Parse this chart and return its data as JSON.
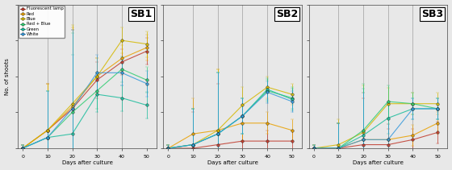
{
  "days": [
    0,
    10,
    20,
    30,
    40,
    50
  ],
  "SB1": {
    "Fluorescent lamp": [
      0.0,
      0.25,
      0.55,
      0.95,
      1.2,
      1.35
    ],
    "Red": [
      0.0,
      0.25,
      0.58,
      1.0,
      1.25,
      1.4
    ],
    "Blue": [
      0.0,
      0.25,
      0.62,
      1.0,
      1.5,
      1.45
    ],
    "Red + Blue": [
      0.0,
      0.15,
      0.5,
      0.8,
      1.1,
      0.95
    ],
    "Green": [
      0.0,
      0.15,
      0.2,
      0.75,
      0.7,
      0.6
    ],
    "White": [
      0.0,
      0.15,
      0.55,
      1.05,
      1.05,
      0.9
    ]
  },
  "SB1_err": {
    "Fluorescent lamp": [
      0.05,
      0.65,
      1.1,
      0.25,
      0.18,
      0.18
    ],
    "Red": [
      0.05,
      0.65,
      1.1,
      0.25,
      0.18,
      0.18
    ],
    "Blue": [
      0.05,
      0.65,
      1.1,
      0.25,
      0.18,
      0.18
    ],
    "Red + Blue": [
      0.05,
      0.65,
      1.1,
      0.25,
      0.18,
      0.18
    ],
    "Green": [
      0.05,
      0.65,
      1.1,
      0.25,
      0.18,
      0.18
    ],
    "White": [
      0.05,
      0.65,
      1.1,
      0.25,
      0.18,
      0.18
    ]
  },
  "SB2": {
    "Fluorescent lamp": [
      0.0,
      0.0,
      0.05,
      0.1,
      0.1,
      0.1
    ],
    "Red": [
      0.0,
      0.2,
      0.25,
      0.35,
      0.35,
      0.25
    ],
    "Blue": [
      0.0,
      0.05,
      0.25,
      0.6,
      0.85,
      0.75
    ],
    "Red + Blue": [
      0.0,
      0.05,
      0.2,
      0.45,
      0.8,
      0.7
    ],
    "Green": [
      0.0,
      0.05,
      0.2,
      0.45,
      0.82,
      0.68
    ],
    "White": [
      0.0,
      0.05,
      0.2,
      0.45,
      0.78,
      0.65
    ]
  },
  "SB2_err": {
    "Fluorescent lamp": [
      0.05,
      0.5,
      0.85,
      0.25,
      0.15,
      0.15
    ],
    "Red": [
      0.05,
      0.5,
      0.85,
      0.25,
      0.15,
      0.15
    ],
    "Blue": [
      0.05,
      0.5,
      0.85,
      0.25,
      0.15,
      0.15
    ],
    "Red + Blue": [
      0.05,
      0.5,
      0.85,
      0.25,
      0.15,
      0.15
    ],
    "Green": [
      0.05,
      0.5,
      0.85,
      0.25,
      0.15,
      0.15
    ],
    "White": [
      0.05,
      0.5,
      0.85,
      0.25,
      0.15,
      0.15
    ]
  },
  "SB3": {
    "Fluorescent lamp": [
      0.0,
      0.0,
      0.05,
      0.05,
      0.12,
      0.22
    ],
    "Red": [
      0.0,
      0.0,
      0.12,
      0.12,
      0.18,
      0.35
    ],
    "Blue": [
      0.0,
      0.05,
      0.22,
      0.62,
      0.62,
      0.62
    ],
    "Red + Blue": [
      0.0,
      0.0,
      0.25,
      0.65,
      0.62,
      0.55
    ],
    "Green": [
      0.0,
      0.0,
      0.18,
      0.42,
      0.55,
      0.55
    ],
    "White": [
      0.0,
      0.0,
      0.12,
      0.12,
      0.55,
      0.55
    ]
  },
  "SB3_err": {
    "Fluorescent lamp": [
      0.05,
      0.35,
      0.65,
      0.22,
      0.15,
      0.15
    ],
    "Red": [
      0.05,
      0.35,
      0.65,
      0.22,
      0.15,
      0.15
    ],
    "Blue": [
      0.05,
      0.35,
      0.65,
      0.22,
      0.15,
      0.15
    ],
    "Red + Blue": [
      0.05,
      0.35,
      0.65,
      0.22,
      0.15,
      0.15
    ],
    "Green": [
      0.05,
      0.35,
      0.65,
      0.22,
      0.15,
      0.15
    ],
    "White": [
      0.05,
      0.35,
      0.65,
      0.22,
      0.15,
      0.15
    ]
  },
  "colors": {
    "Fluorescent lamp": "#c0392b",
    "Red": "#e8a000",
    "Blue": "#d4b800",
    "Red + Blue": "#2ecc71",
    "Green": "#1abc9c",
    "White": "#3498db"
  },
  "ylim": [
    0,
    2.0
  ],
  "yticks": [
    0.0,
    0.5,
    1.0,
    1.5,
    2.0
  ],
  "ylabel": "No. of shoots",
  "xlabel": "Days after culture",
  "bg_color": "#e8e8e8"
}
